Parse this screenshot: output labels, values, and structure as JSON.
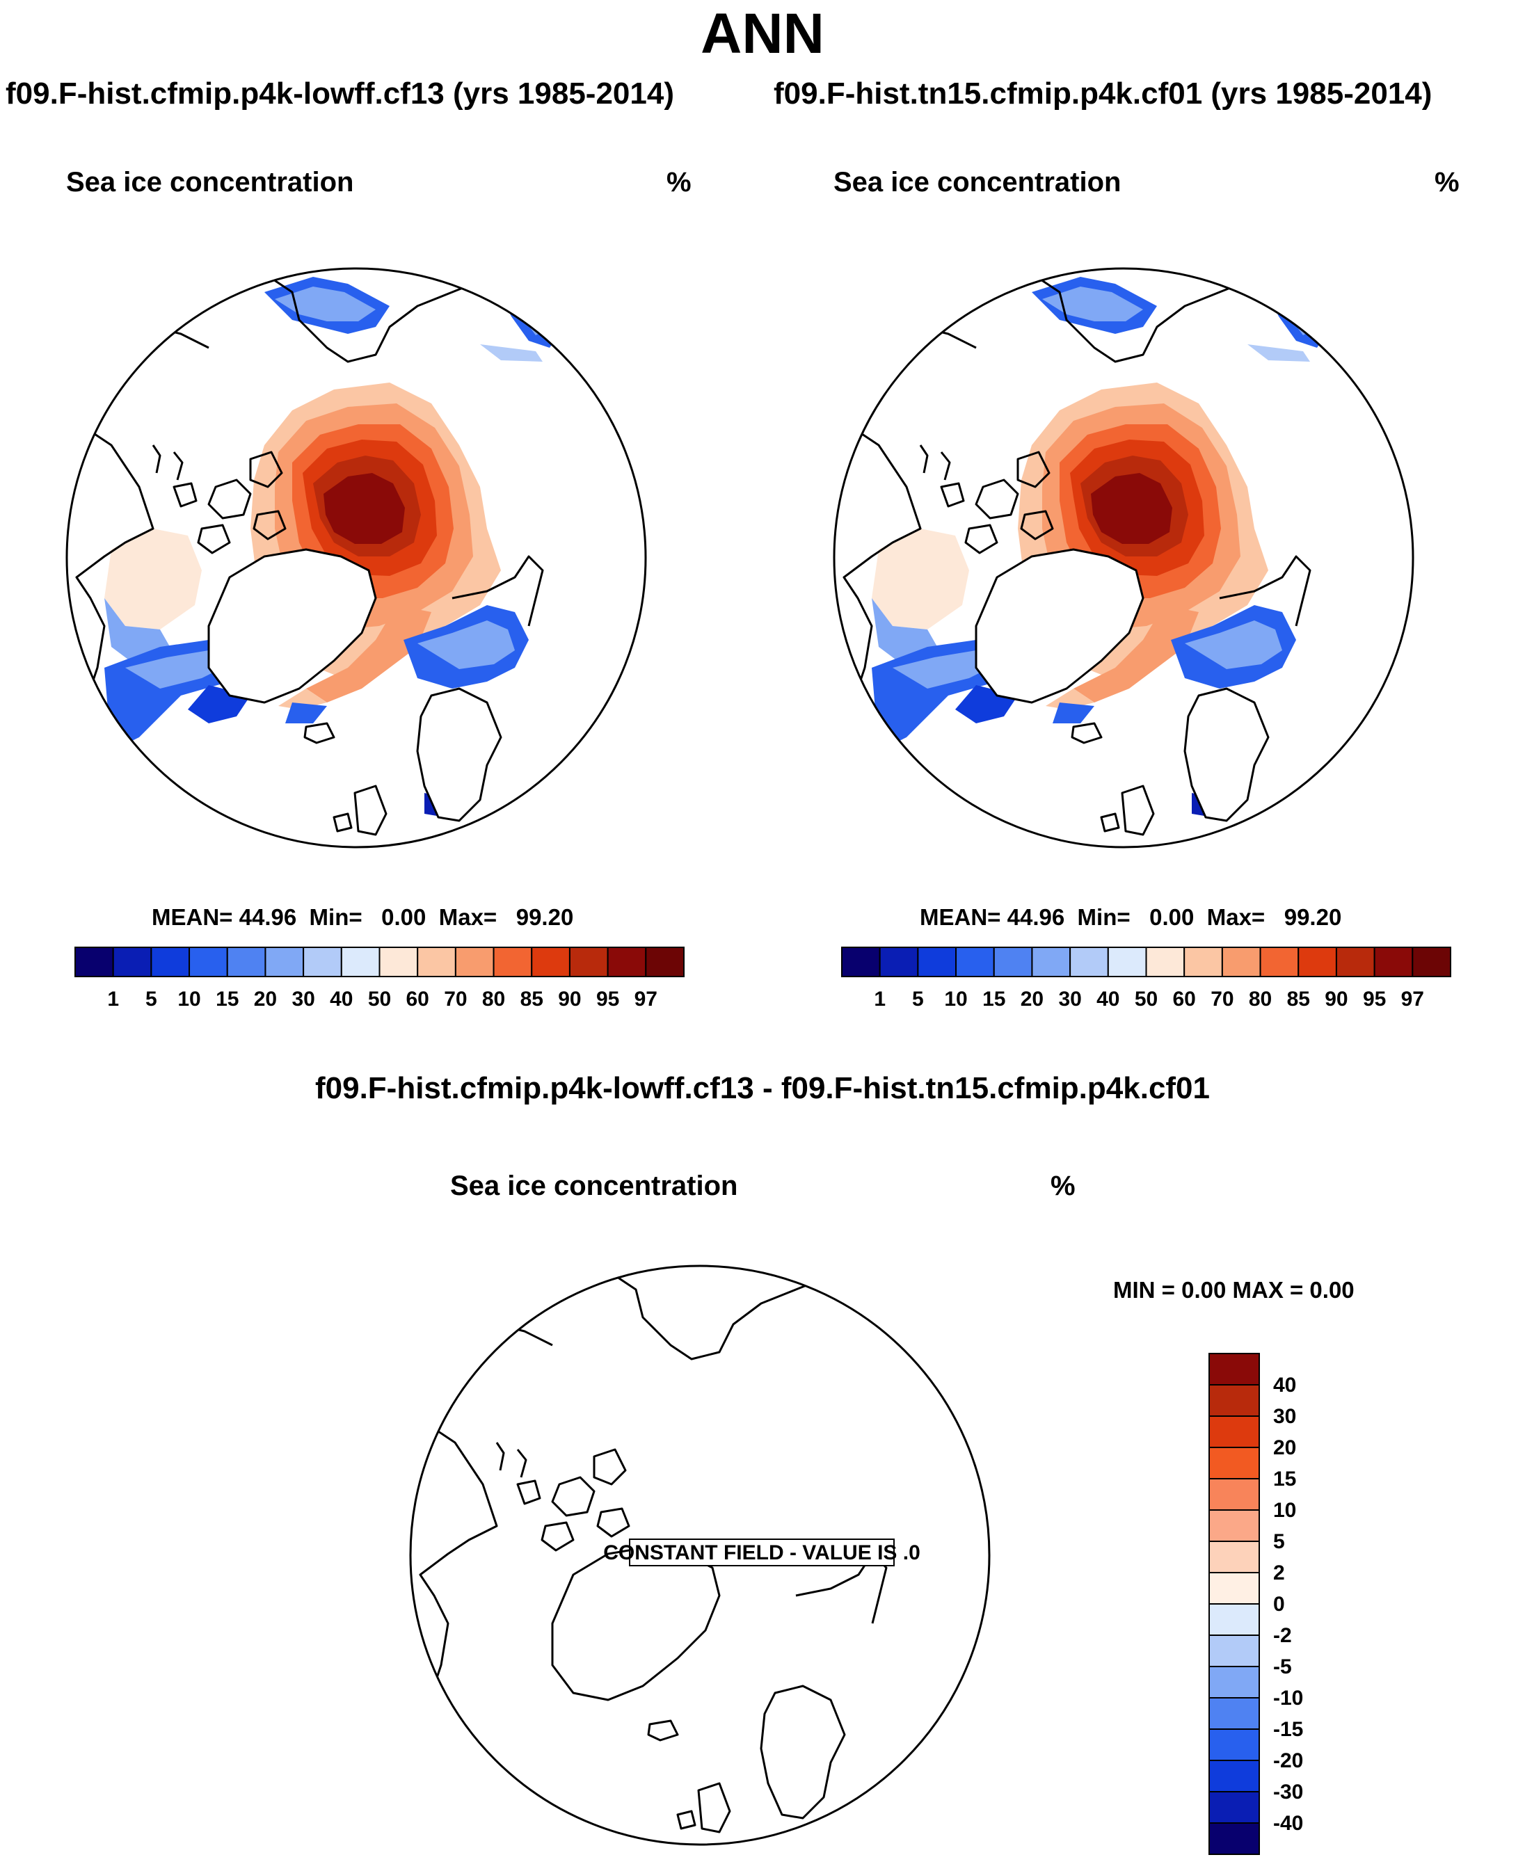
{
  "title": "ANN",
  "case1": {
    "title": "f09.F-hist.cfmip.p4k-lowff.cf13 (yrs 1985-2014)",
    "field": "Sea ice concentration",
    "units": "%",
    "stats": {
      "mean": "44.96",
      "min": "0.00",
      "max": "99.20"
    }
  },
  "case2": {
    "title": "f09.F-hist.tn15.cfmip.p4k.cf01 (yrs 1985-2014)",
    "field": "Sea ice concentration",
    "units": "%",
    "stats": {
      "mean": "44.96",
      "min": "0.00",
      "max": "99.20"
    }
  },
  "stat_labels": {
    "mean": "MEAN=",
    "min": "Min=",
    "max": "Max="
  },
  "difference": {
    "title": "f09.F-hist.cfmip.p4k-lowff.cf13 - f09.F-hist.tn15.cfmip.p4k.cf01",
    "field": "Sea ice concentration",
    "units": "%",
    "minmax": "MIN =   0.00 MAX =   0.00",
    "constant_field_label": "CONSTANT FIELD - VALUE IS .0"
  },
  "colorbar_main": {
    "levels": [
      "1",
      "5",
      "10",
      "15",
      "20",
      "30",
      "40",
      "50",
      "60",
      "70",
      "80",
      "85",
      "90",
      "95",
      "97"
    ],
    "colors": [
      "#08006e",
      "#0a1eb4",
      "#0f3cdc",
      "#2860ee",
      "#4f82f2",
      "#80a8f5",
      "#b2cbf8",
      "#dceafc",
      "#fde8d8",
      "#fbc6a4",
      "#f89c6e",
      "#f26532",
      "#dd3a0e",
      "#b82a0c",
      "#8a0a08",
      "#6c0505"
    ]
  },
  "colorbar_diff": {
    "levels": [
      "40",
      "30",
      "20",
      "15",
      "10",
      "5",
      "2",
      "0",
      "-2",
      "-5",
      "-10",
      "-15",
      "-20",
      "-30",
      "-40"
    ],
    "colors": [
      "#8a0a08",
      "#b82a0c",
      "#dd3a0e",
      "#f25a22",
      "#f8845a",
      "#fba888",
      "#fdd2ba",
      "#fff0e4",
      "#dceafc",
      "#b2cbf8",
      "#80a8f5",
      "#4f82f2",
      "#2860ee",
      "#0f3cdc",
      "#0a1eb4",
      "#08006e"
    ]
  },
  "map_legend_colors": {
    "ice_core": "#8a0a08",
    "ice_high": "#dd3a0e",
    "ice_mid": "#f89c6e",
    "ice_low": "#fde8d8",
    "edge_blue": "#2860ee",
    "edge_dark": "#0a1eb4",
    "edge_light": "#80a8f5"
  }
}
